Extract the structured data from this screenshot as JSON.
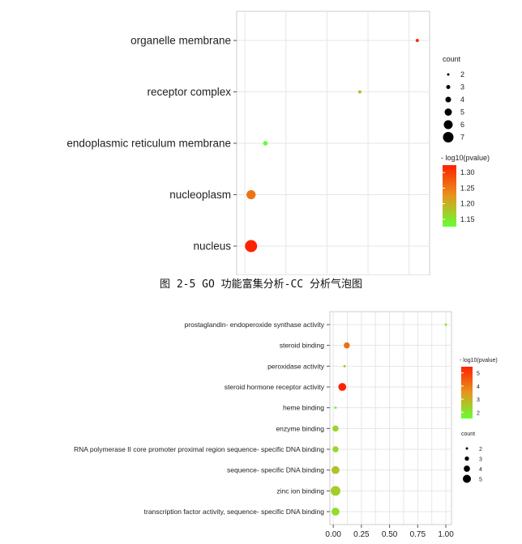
{
  "figure1": {
    "caption": "图 2-5 GO 功能富集分析-CC 分析气泡图",
    "chart_data": {
      "type": "scatter",
      "categories": [
        "organelle membrane",
        "receptor complex",
        "endoplasmic reticulum membrane",
        "nucleoplasm",
        "nucleus"
      ],
      "x": [
        0.42,
        0.28,
        0.05,
        0.015,
        0.015
      ],
      "count": [
        1,
        1,
        2,
        5,
        7
      ],
      "neg_log10_pvalue": [
        1.34,
        1.2,
        1.12,
        1.27,
        1.35
      ],
      "xlim": [
        -0.02,
        0.45
      ],
      "x_ticks_visible": false,
      "size_legend": {
        "title": "count",
        "entries": [
          "2",
          "3",
          "4",
          "5",
          "6",
          "7"
        ]
      },
      "color_legend": {
        "title": "- log10(pvalue)",
        "ticks": [
          "1.30",
          "1.25",
          "1.20",
          "1.15"
        ],
        "low_color": "#66ff33",
        "high_color": "#ff2200"
      },
      "grid": true,
      "legend_position": "right"
    }
  },
  "figure2": {
    "chart_data": {
      "type": "scatter",
      "categories": [
        "prostaglandin- endoperoxide synthase activity",
        "steroid binding",
        "peroxidase activity",
        "steroid hormone receptor activity",
        "heme binding",
        "enzyme binding",
        "RNA polymerase II core promoter proximal region sequence- specific DNA binding",
        "sequence- specific DNA binding",
        "zinc ion binding",
        "transcription factor activity, sequence- specific DNA binding"
      ],
      "x": [
        1.0,
        0.12,
        0.1,
        0.08,
        0.02,
        0.02,
        0.02,
        0.02,
        0.02,
        0.02
      ],
      "count": [
        1,
        3,
        1,
        4,
        1,
        3,
        3,
        4,
        5,
        4
      ],
      "neg_log10_pvalue": [
        2,
        4,
        2.5,
        5.2,
        1.5,
        2.3,
        2.2,
        2.6,
        2.4,
        2.1
      ],
      "xlim": [
        -0.03,
        1.05
      ],
      "x_ticks": [
        "0.00",
        "0.25",
        "0.50",
        "0.75",
        "1.00"
      ],
      "size_legend": {
        "title": "count",
        "entries": [
          "2",
          "3",
          "4",
          "5"
        ]
      },
      "color_legend": {
        "title": "- log10(pvalue)",
        "ticks": [
          "5",
          "4",
          "3",
          "2"
        ],
        "low_color": "#66ff33",
        "high_color": "#ff2200"
      },
      "grid": true,
      "legend_position": "right"
    }
  }
}
